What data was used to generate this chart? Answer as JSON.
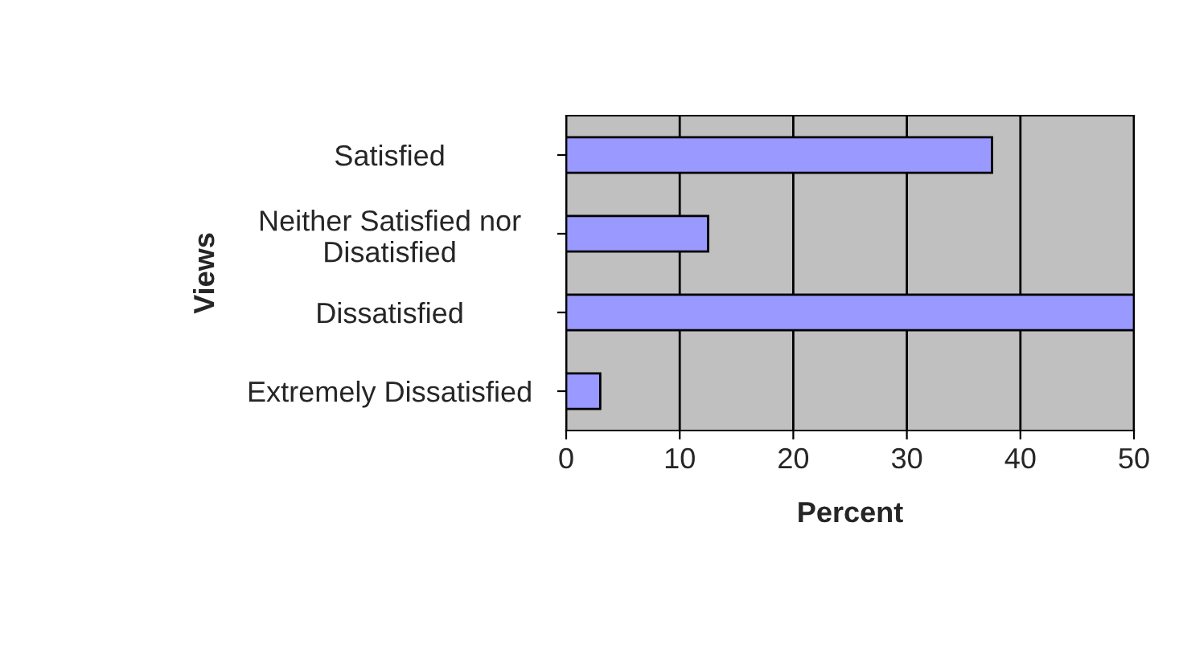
{
  "chart_data": {
    "type": "bar",
    "orientation": "horizontal",
    "categories": [
      "Satisfied",
      "Neither Satisfied nor\nDisatisfied",
      "Dissatisfied",
      "Extremely Dissatisfied"
    ],
    "values": [
      37.5,
      12.5,
      50,
      3
    ],
    "color": "#9999ff",
    "xlim": [
      0,
      50
    ],
    "xticks": [
      0,
      10,
      20,
      30,
      40,
      50
    ],
    "xlabel": "Percent",
    "ylabel": "Views",
    "grid": "x"
  }
}
